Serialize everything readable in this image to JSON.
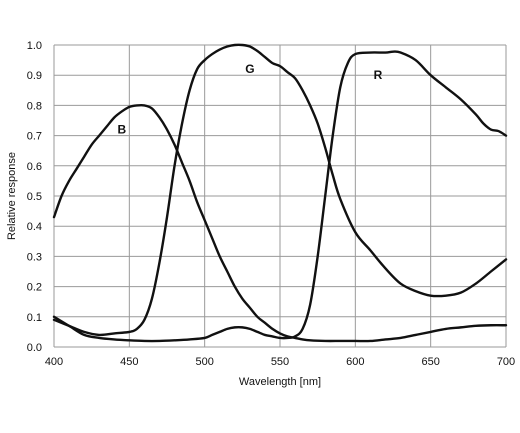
{
  "chart_data": {
    "type": "line",
    "xlabel": "Wavelength [nm]",
    "ylabel": "Relative response",
    "xlim": [
      400,
      700
    ],
    "ylim": [
      0,
      1.0
    ],
    "xticks": [
      "400",
      "450",
      "500",
      "550",
      "600",
      "650",
      "700"
    ],
    "yticks": [
      "0.0",
      "0.1",
      "0.2",
      "0.3",
      "0.4",
      "0.5",
      "0.6",
      "0.7",
      "0.8",
      "0.9",
      "1.0"
    ],
    "xtick_values": [
      400,
      450,
      500,
      550,
      600,
      650,
      700
    ],
    "ytick_values": [
      0,
      0.1,
      0.2,
      0.3,
      0.4,
      0.5,
      0.6,
      0.7,
      0.8,
      0.9,
      1.0
    ],
    "grid": true,
    "legend": "none",
    "series": [
      {
        "name": "B",
        "label_at": [
          445,
          0.72
        ],
        "x": [
          400,
          405,
          410,
          415,
          420,
          425,
          430,
          435,
          440,
          445,
          450,
          455,
          460,
          465,
          470,
          475,
          480,
          485,
          490,
          495,
          500,
          505,
          510,
          515,
          520,
          525,
          530,
          535,
          540,
          545,
          550,
          555,
          560,
          565,
          570,
          580,
          590,
          600,
          610,
          620,
          630,
          640,
          650,
          660,
          670,
          680,
          690,
          700
        ],
        "y": [
          0.43,
          0.5,
          0.55,
          0.59,
          0.63,
          0.67,
          0.7,
          0.73,
          0.76,
          0.78,
          0.795,
          0.8,
          0.8,
          0.79,
          0.76,
          0.72,
          0.67,
          0.61,
          0.55,
          0.48,
          0.42,
          0.36,
          0.3,
          0.25,
          0.2,
          0.16,
          0.13,
          0.1,
          0.08,
          0.06,
          0.045,
          0.035,
          0.03,
          0.025,
          0.022,
          0.02,
          0.02,
          0.02,
          0.02,
          0.025,
          0.03,
          0.04,
          0.05,
          0.06,
          0.065,
          0.07,
          0.072,
          0.072
        ]
      },
      {
        "name": "G",
        "label_at": [
          530,
          0.92
        ],
        "x": [
          400,
          410,
          420,
          430,
          440,
          450,
          455,
          460,
          465,
          470,
          475,
          480,
          485,
          490,
          495,
          500,
          505,
          510,
          515,
          520,
          525,
          530,
          535,
          540,
          545,
          550,
          555,
          560,
          565,
          570,
          575,
          580,
          585,
          590,
          600,
          610,
          620,
          630,
          640,
          650,
          660,
          670,
          680,
          690,
          700
        ],
        "y": [
          0.09,
          0.07,
          0.05,
          0.04,
          0.045,
          0.05,
          0.06,
          0.09,
          0.16,
          0.28,
          0.43,
          0.6,
          0.74,
          0.85,
          0.92,
          0.95,
          0.97,
          0.985,
          0.995,
          1.0,
          1.0,
          0.995,
          0.98,
          0.96,
          0.94,
          0.93,
          0.91,
          0.89,
          0.85,
          0.8,
          0.74,
          0.66,
          0.57,
          0.49,
          0.38,
          0.32,
          0.26,
          0.21,
          0.185,
          0.17,
          0.17,
          0.18,
          0.21,
          0.25,
          0.29
        ]
      },
      {
        "name": "R",
        "label_at": [
          615,
          0.9
        ],
        "x": [
          400,
          410,
          420,
          430,
          440,
          450,
          460,
          470,
          480,
          490,
          500,
          505,
          510,
          515,
          520,
          525,
          530,
          535,
          540,
          545,
          550,
          555,
          560,
          565,
          570,
          575,
          580,
          585,
          590,
          595,
          600,
          610,
          620,
          625,
          630,
          640,
          650,
          660,
          670,
          680,
          685,
          690,
          695,
          700
        ],
        "y": [
          0.1,
          0.07,
          0.04,
          0.03,
          0.025,
          0.022,
          0.02,
          0.02,
          0.022,
          0.025,
          0.03,
          0.04,
          0.05,
          0.06,
          0.065,
          0.065,
          0.06,
          0.05,
          0.04,
          0.035,
          0.03,
          0.03,
          0.035,
          0.06,
          0.14,
          0.3,
          0.5,
          0.7,
          0.86,
          0.94,
          0.97,
          0.975,
          0.975,
          0.978,
          0.975,
          0.95,
          0.9,
          0.86,
          0.82,
          0.77,
          0.74,
          0.72,
          0.715,
          0.7
        ]
      }
    ]
  }
}
